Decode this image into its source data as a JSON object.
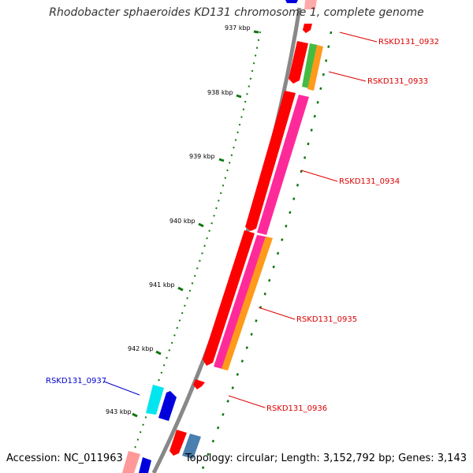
{
  "title": "Rhodobacter sphaeroides KD131 chromosome 1, complete genome",
  "footer": {
    "accession": "Accession: NC_011963",
    "topology": "Topology: circular; Length: 3,152,792 bp; Genes: 3,143"
  },
  "scale_labels": [
    "937 kbp",
    "938 kbp",
    "939 kbp",
    "940 kbp",
    "941 kbp",
    "942 kbp",
    "943 kbp"
  ],
  "gene_labels": [
    {
      "id": "g0932",
      "text": "RSKD131_0932",
      "color": "#dd0000"
    },
    {
      "id": "g0933",
      "text": "RSKD131_0933",
      "color": "#dd0000"
    },
    {
      "id": "g0934",
      "text": "RSKD131_0934",
      "color": "#dd0000"
    },
    {
      "id": "g0935",
      "text": "RSKD131_0935",
      "color": "#dd0000"
    },
    {
      "id": "g0936",
      "text": "RSKD131_0936",
      "color": "#dd0000"
    },
    {
      "id": "g0937",
      "text": "RSKD131_0937",
      "color": "#0000cc"
    }
  ],
  "colors": {
    "backbone": "#888888",
    "tick": "#117711",
    "red": "#ff0000",
    "pink": "#ff2a9a",
    "orange": "#ff9a1a",
    "green": "#44bb44",
    "cyan": "#00e5ee",
    "blue": "#0000dd",
    "steel": "#4a7faf"
  }
}
